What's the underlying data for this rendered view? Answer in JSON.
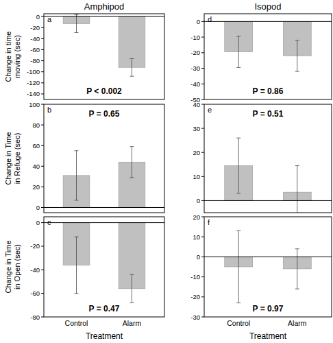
{
  "chart_data": [
    {
      "type": "bar",
      "title": "Amphipod",
      "ylabel": "Change in time moving (sec)",
      "annotations": [
        "a",
        "P < 0.002"
      ],
      "categories": [
        "Control",
        "Alarm"
      ],
      "values": [
        -13,
        -92
      ],
      "errors": [
        16,
        16
      ],
      "color": "#c0c0c0",
      "ylim": [
        -150,
        5
      ],
      "yticks": [
        0,
        -20,
        -40,
        -60,
        -80,
        -100,
        -120,
        -140
      ],
      "tick_labels": "y"
    },
    {
      "type": "bar",
      "ylabel": "Change in Time in Refuge (sec)",
      "annotations": [
        "b",
        "P = 0.65"
      ],
      "categories": [
        "Control",
        "Alarm"
      ],
      "values": [
        31,
        44
      ],
      "errors": [
        24,
        15
      ],
      "color": "#c0c0c0",
      "ylim": [
        -5,
        100
      ],
      "yticks": [
        0,
        20,
        40,
        60,
        80,
        100
      ],
      "tick_labels": "y"
    },
    {
      "type": "bar",
      "ylabel": "Change in Time in Open (sec)",
      "xlabel": "Treatment",
      "annotations": [
        "c",
        "P = 0.47"
      ],
      "categories": [
        "Control",
        "Alarm"
      ],
      "values": [
        -36,
        -56
      ],
      "errors": [
        24,
        12
      ],
      "color": "#c0c0c0",
      "ylim": [
        -80,
        5
      ],
      "yticks": [
        0,
        -20,
        -40,
        -60,
        -80
      ],
      "tick_labels": true
    },
    {
      "type": "bar",
      "title": "Isopod",
      "annotations": [
        "d",
        "P = 0.86"
      ],
      "categories": [
        "Control",
        "Alarm"
      ],
      "values": [
        -19.5,
        -22
      ],
      "errors": [
        10,
        10
      ],
      "color": "#c0c0c0",
      "ylim": [
        -50,
        5
      ],
      "yticks": [
        0,
        -10,
        -20,
        -30,
        -40,
        -50
      ],
      "tick_labels": "y"
    },
    {
      "type": "bar",
      "annotations": [
        "e",
        "P = 0.51"
      ],
      "categories": [
        "Control",
        "Alarm"
      ],
      "values": [
        14.5,
        3.5
      ],
      "errors": [
        11.5,
        11
      ],
      "color": "#c0c0c0",
      "ylim": [
        -5,
        40
      ],
      "yticks": [
        0,
        10,
        20,
        30,
        40
      ],
      "tick_labels": "y"
    },
    {
      "type": "bar",
      "xlabel": "Treatment",
      "annotations": [
        "f",
        "P = 0.97"
      ],
      "categories": [
        "Control",
        "Alarm"
      ],
      "values": [
        -5,
        -6
      ],
      "errors": [
        18,
        10
      ],
      "color": "#c0c0c0",
      "ylim": [
        -30,
        20
      ],
      "yticks": [
        20,
        10,
        0,
        -10,
        -20,
        -30
      ],
      "tick_labels": true
    }
  ]
}
